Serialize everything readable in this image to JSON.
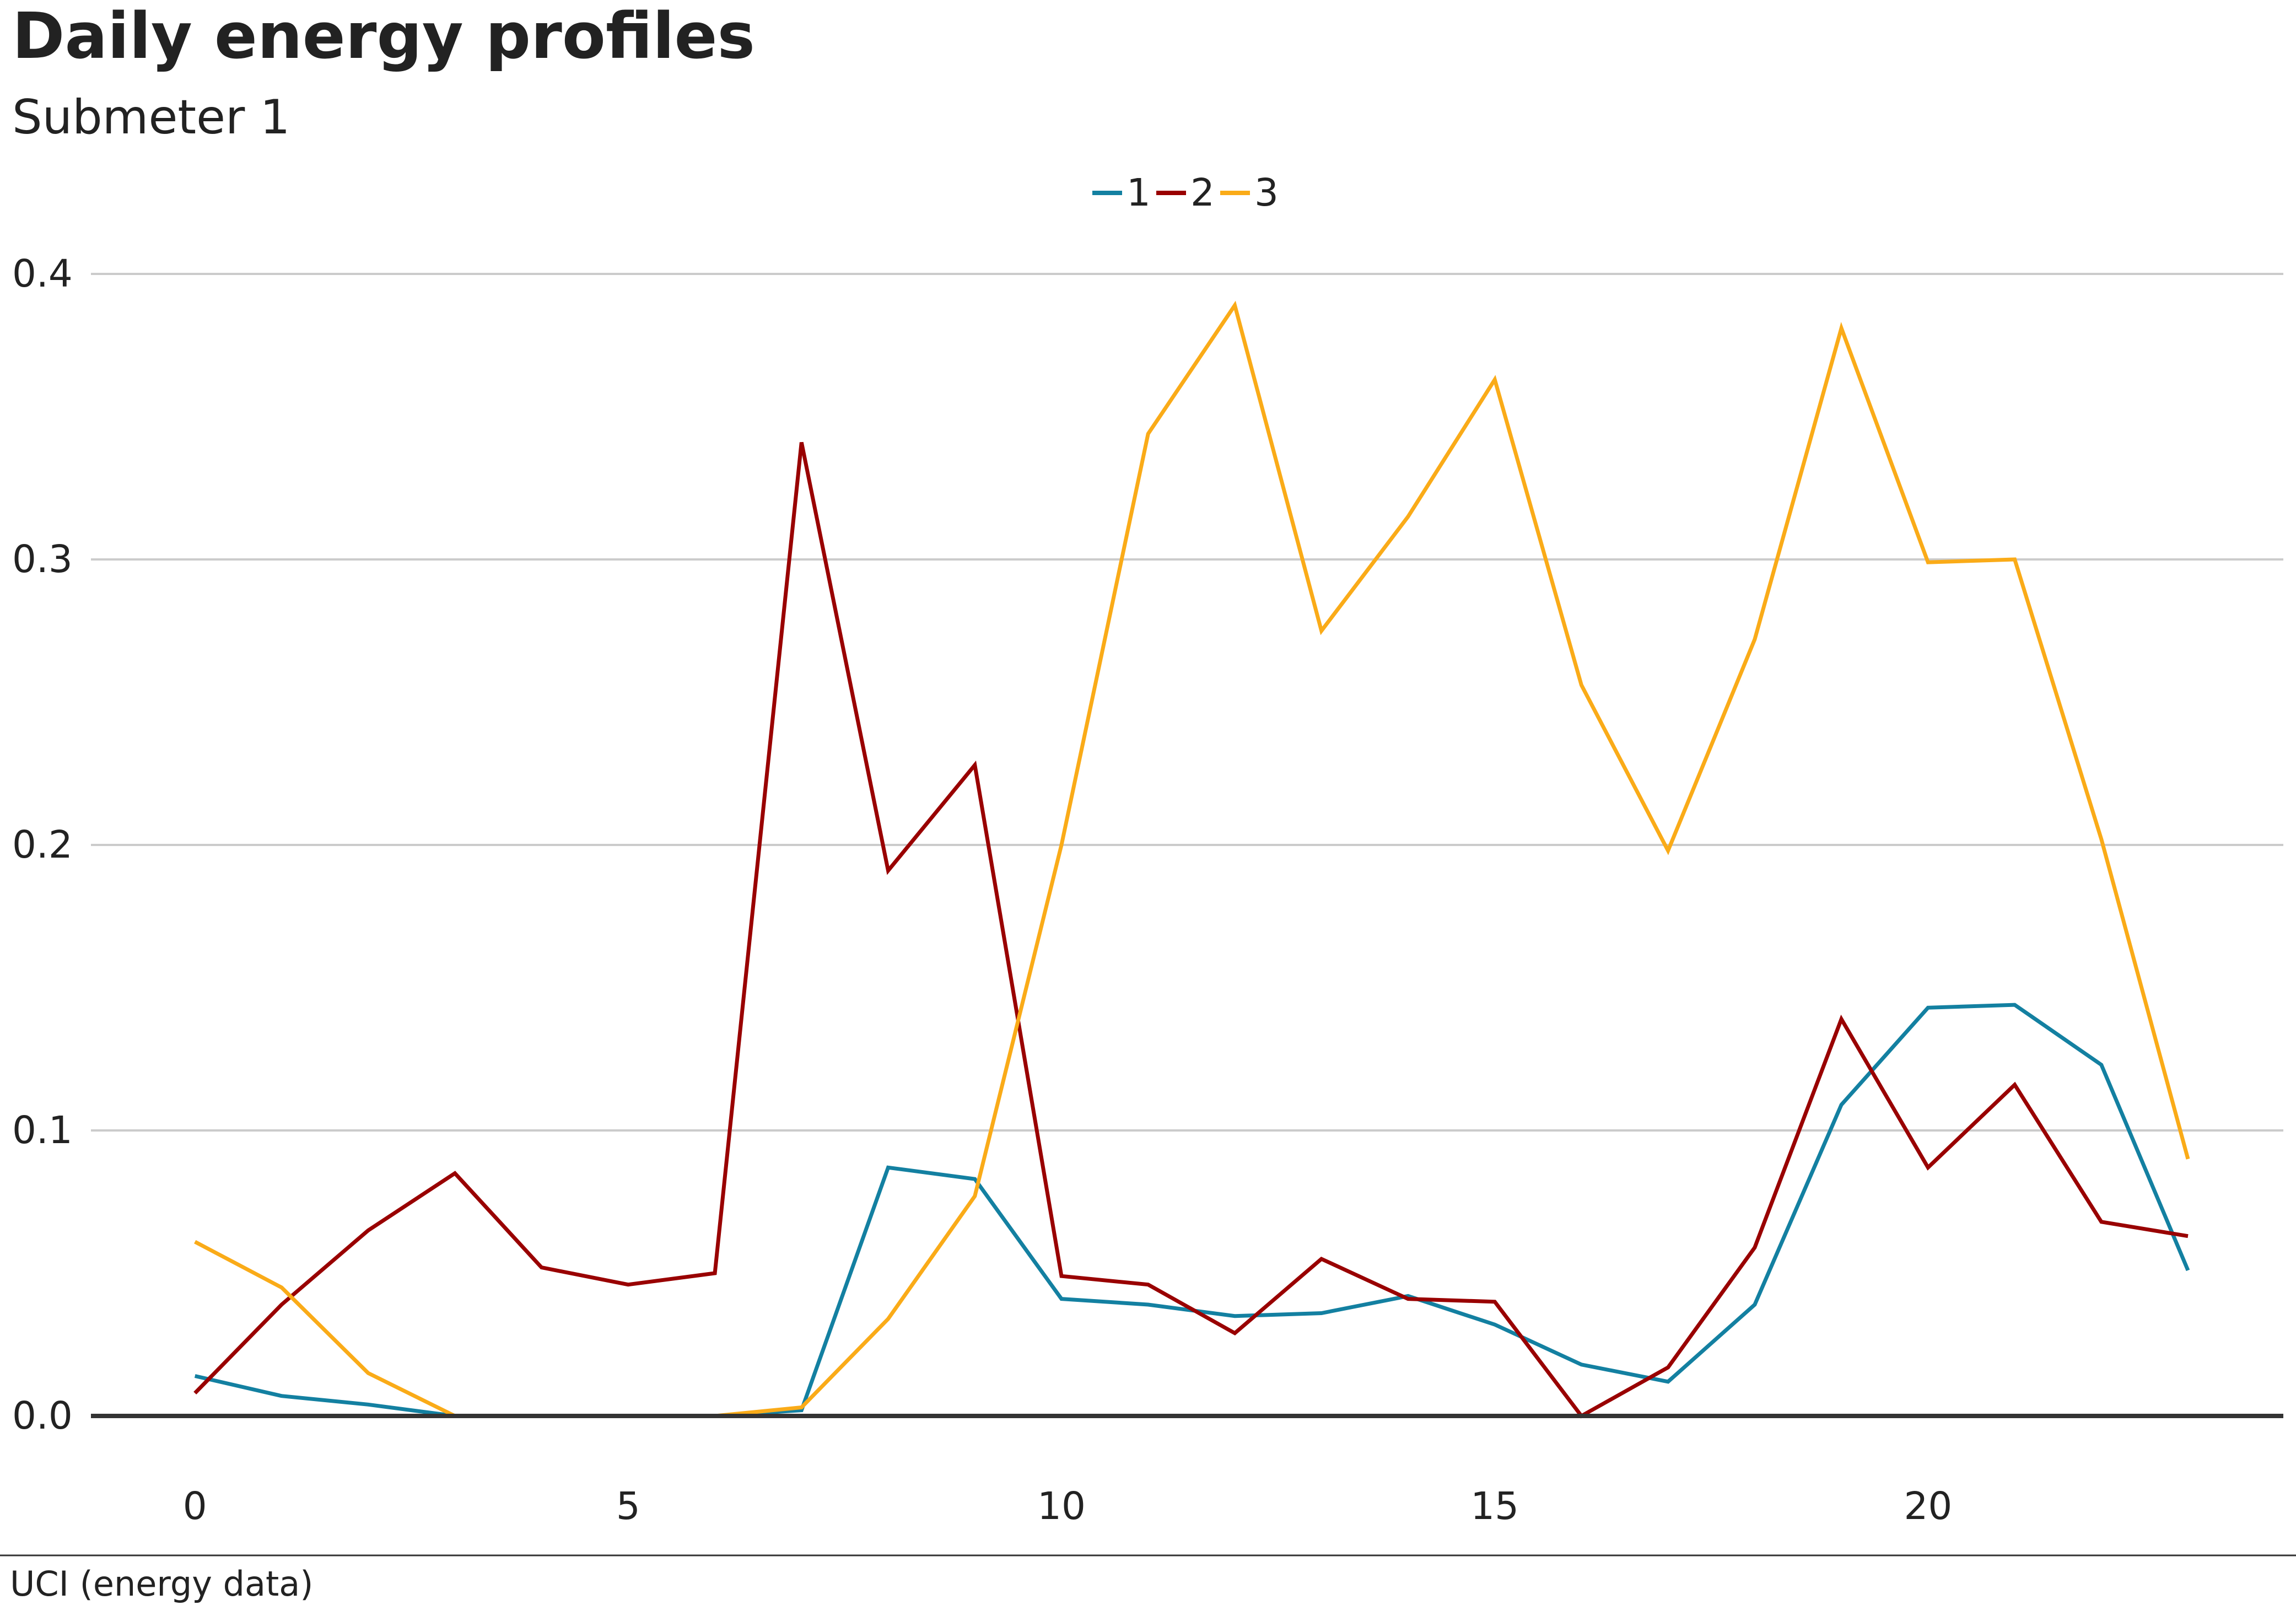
{
  "chart_data": {
    "type": "line",
    "title": "Daily energy profiles",
    "subtitle": "Submeter 1",
    "source": "UCI (energy data)",
    "x": [
      0,
      1,
      2,
      3,
      4,
      5,
      6,
      7,
      8,
      9,
      10,
      11,
      12,
      13,
      14,
      15,
      16,
      17,
      18,
      19,
      20,
      21,
      22,
      23
    ],
    "xticks": [
      0,
      5,
      10,
      15,
      20
    ],
    "xtick_labels": [
      "0",
      "5",
      "10",
      "15",
      "20"
    ],
    "xlim": [
      -1.2,
      24.1
    ],
    "yticks": [
      0.0,
      0.1,
      0.2,
      0.3,
      0.4
    ],
    "ytick_labels": [
      "0.0",
      "0.1",
      "0.2",
      "0.3",
      "0.4"
    ],
    "ylim": [
      0,
      0.4
    ],
    "grid": true,
    "legend_position": "top-center",
    "series": [
      {
        "name": "1",
        "color": "#1380A1",
        "values": [
          0.014,
          0.007,
          0.004,
          0.0,
          0.0,
          0.0,
          0.0,
          0.002,
          0.087,
          0.083,
          0.041,
          0.039,
          0.035,
          0.036,
          0.042,
          0.032,
          0.018,
          0.012,
          0.039,
          0.109,
          0.143,
          0.144,
          0.123,
          0.051
        ]
      },
      {
        "name": "2",
        "color": "#990000",
        "values": [
          0.008,
          0.039,
          0.065,
          0.085,
          0.052,
          0.046,
          0.05,
          0.341,
          0.191,
          0.228,
          0.049,
          0.046,
          0.029,
          0.055,
          0.041,
          0.04,
          0.0,
          0.017,
          0.059,
          0.139,
          0.087,
          0.116,
          0.068,
          0.063
        ]
      },
      {
        "name": "3",
        "color": "#FAAB18",
        "values": [
          0.061,
          0.045,
          0.015,
          0.0,
          null,
          null,
          0.0,
          0.003,
          0.034,
          0.077,
          0.2,
          0.344,
          0.389,
          0.275,
          0.315,
          0.363,
          0.256,
          0.198,
          0.272,
          0.381,
          0.299,
          0.3,
          0.202,
          0.09
        ]
      }
    ]
  }
}
